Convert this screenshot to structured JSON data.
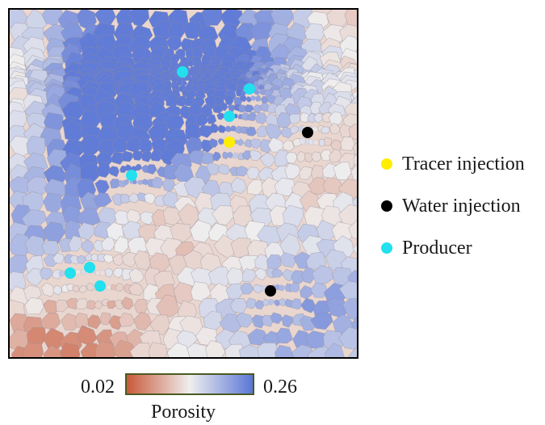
{
  "legend": {
    "items": [
      {
        "label": "Tracer injection",
        "color": "#ffee00"
      },
      {
        "label": "Water injection",
        "color": "#000000"
      },
      {
        "label": "Producer",
        "color": "#22e0ee"
      }
    ]
  },
  "colorbar": {
    "min": "0.02",
    "max": "0.26",
    "label": "Porosity",
    "color_low": "#c85a3a",
    "color_mid": "#efeeee",
    "color_high": "#5b77d6"
  },
  "wells": [
    {
      "type": "producer"
    },
    {
      "type": "producer"
    },
    {
      "type": "producer"
    },
    {
      "type": "producer"
    },
    {
      "type": "producer"
    },
    {
      "type": "producer"
    },
    {
      "type": "producer"
    },
    {
      "type": "tracer_injection"
    },
    {
      "type": "water_injection"
    },
    {
      "type": "water_injection"
    }
  ]
}
